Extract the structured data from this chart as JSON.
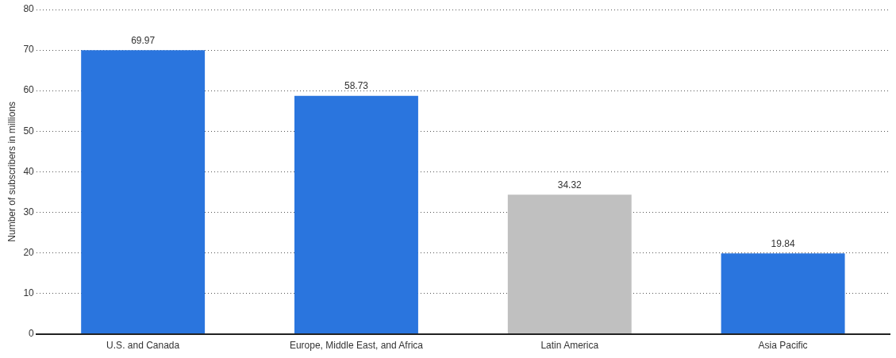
{
  "chart_data": {
    "type": "bar",
    "ylabel": "Number of subscribers in millions",
    "categories": [
      "U.S. and Canada",
      "Europe, Middle East, and Africa",
      "Latin America",
      "Asia Pacific"
    ],
    "values": [
      69.97,
      58.73,
      34.32,
      19.84
    ],
    "colors": [
      "#2a75de",
      "#2a75de",
      "#c0c0c0",
      "#2a75de"
    ],
    "ylim": [
      0,
      80
    ],
    "yticks": [
      0,
      10,
      20,
      30,
      40,
      50,
      60,
      70,
      80
    ],
    "grid": "y",
    "data_labels": true
  }
}
